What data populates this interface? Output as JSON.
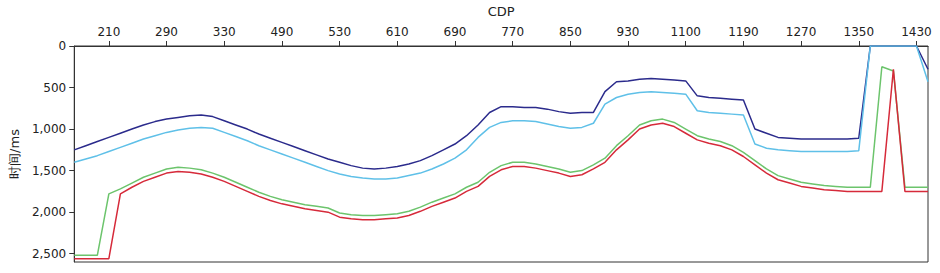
{
  "chart_data": {
    "type": "line",
    "x_label": "CDP",
    "y_label": "时间/ms",
    "categories": [
      null,
      null,
      null,
      "210",
      null,
      null,
      null,
      null,
      "290",
      null,
      null,
      null,
      null,
      "330",
      null,
      null,
      null,
      null,
      "490",
      null,
      null,
      null,
      null,
      "530",
      null,
      null,
      null,
      null,
      "610",
      null,
      null,
      null,
      null,
      "690",
      null,
      null,
      null,
      null,
      "770",
      null,
      null,
      null,
      null,
      "850",
      null,
      null,
      null,
      null,
      "930",
      null,
      null,
      null,
      null,
      "1100",
      null,
      null,
      null,
      null,
      "1190",
      null,
      null,
      null,
      null,
      "1270",
      null,
      null,
      null,
      null,
      "1350",
      null,
      null,
      null,
      null,
      "1430",
      null
    ],
    "series": [
      {
        "color": "#2b2b8c",
        "values": [
          1250,
          1200,
          1150,
          1100,
          1050,
          1000,
          950,
          910,
          880,
          860,
          840,
          830,
          850,
          900,
          950,
          1000,
          1060,
          1110,
          1160,
          1210,
          1260,
          1310,
          1360,
          1400,
          1440,
          1470,
          1480,
          1470,
          1450,
          1420,
          1380,
          1320,
          1250,
          1180,
          1080,
          950,
          800,
          730,
          730,
          740,
          740,
          760,
          790,
          810,
          800,
          800,
          550,
          430,
          420,
          400,
          390,
          400,
          410,
          420,
          600,
          620,
          630,
          640,
          650,
          1000,
          1050,
          1100,
          1110,
          1120,
          1120,
          1120,
          1120,
          1120,
          1110,
          0,
          0,
          0,
          0,
          0,
          280
        ]
      },
      {
        "color": "#5fc0e8",
        "values": [
          1400,
          1360,
          1320,
          1270,
          1220,
          1170,
          1120,
          1080,
          1040,
          1010,
          990,
          980,
          990,
          1040,
          1090,
          1140,
          1200,
          1250,
          1300,
          1350,
          1400,
          1450,
          1500,
          1540,
          1570,
          1590,
          1600,
          1600,
          1590,
          1560,
          1530,
          1480,
          1420,
          1350,
          1250,
          1100,
          980,
          920,
          900,
          900,
          910,
          940,
          970,
          990,
          980,
          930,
          700,
          620,
          580,
          560,
          550,
          560,
          570,
          580,
          780,
          800,
          810,
          820,
          830,
          1180,
          1230,
          1250,
          1260,
          1270,
          1270,
          1270,
          1270,
          1270,
          1260,
          0,
          0,
          0,
          0,
          0,
          430
        ]
      },
      {
        "color": "#6cc46c",
        "values": [
          2520,
          2520,
          2520,
          1780,
          1720,
          1650,
          1580,
          1530,
          1480,
          1460,
          1470,
          1490,
          1530,
          1580,
          1640,
          1700,
          1760,
          1810,
          1850,
          1880,
          1910,
          1930,
          1950,
          2010,
          2030,
          2040,
          2040,
          2030,
          2020,
          1990,
          1940,
          1880,
          1830,
          1780,
          1700,
          1640,
          1520,
          1440,
          1400,
          1400,
          1420,
          1450,
          1480,
          1520,
          1500,
          1430,
          1350,
          1200,
          1080,
          950,
          900,
          880,
          920,
          1000,
          1080,
          1120,
          1150,
          1200,
          1280,
          1380,
          1480,
          1560,
          1600,
          1640,
          1660,
          1680,
          1690,
          1700,
          1700,
          1700,
          250,
          300,
          1700,
          1700,
          1700
        ]
      },
      {
        "color": "#d62a3a",
        "values": [
          2560,
          2560,
          2560,
          2560,
          1780,
          1700,
          1630,
          1580,
          1530,
          1510,
          1520,
          1540,
          1580,
          1630,
          1690,
          1750,
          1810,
          1860,
          1900,
          1930,
          1960,
          1980,
          2000,
          2060,
          2080,
          2090,
          2090,
          2080,
          2070,
          2040,
          1990,
          1930,
          1880,
          1830,
          1750,
          1690,
          1570,
          1490,
          1450,
          1450,
          1470,
          1500,
          1530,
          1570,
          1550,
          1480,
          1400,
          1250,
          1130,
          1000,
          950,
          930,
          970,
          1050,
          1130,
          1170,
          1200,
          1250,
          1330,
          1430,
          1530,
          1610,
          1650,
          1690,
          1710,
          1730,
          1740,
          1750,
          1750,
          1750,
          1750,
          280,
          1750,
          1750,
          1750
        ]
      }
    ],
    "ylim": [
      0,
      2600
    ],
    "yticks": [
      0,
      500,
      1000,
      1500,
      2000,
      2500
    ],
    "grid": false
  }
}
